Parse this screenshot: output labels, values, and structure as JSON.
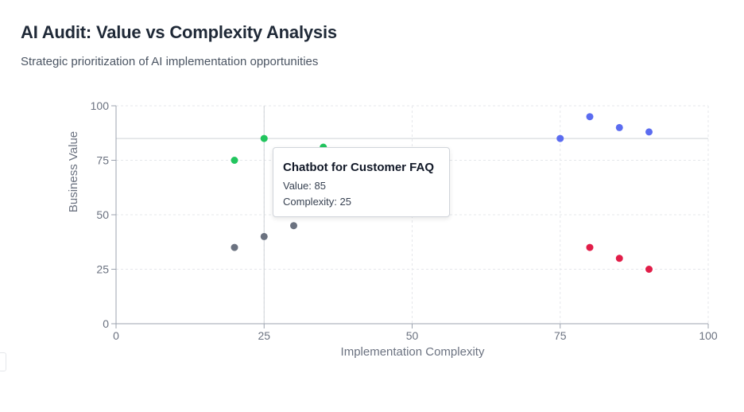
{
  "header": {
    "title": "AI Audit: Value vs Complexity Analysis",
    "subtitle": "Strategic prioritization of AI implementation opportunities"
  },
  "chart_data": {
    "type": "scatter",
    "title": "",
    "xlabel": "Implementation Complexity",
    "ylabel": "Business Value",
    "xlim": [
      0,
      100
    ],
    "ylim": [
      0,
      100
    ],
    "x_ticks": [
      0,
      25,
      50,
      75,
      100
    ],
    "y_ticks": [
      0,
      25,
      50,
      75,
      100
    ],
    "grid": true,
    "series": [
      {
        "color": "#22c55e",
        "points": [
          {
            "x": 20,
            "y": 75
          },
          {
            "x": 25,
            "y": 85
          },
          {
            "x": 35,
            "y": 81
          }
        ]
      },
      {
        "color": "#6b7280",
        "points": [
          {
            "x": 20,
            "y": 35
          },
          {
            "x": 25,
            "y": 40
          },
          {
            "x": 30,
            "y": 45
          }
        ]
      },
      {
        "color": "#5b6cf0",
        "points": [
          {
            "x": 75,
            "y": 85
          },
          {
            "x": 80,
            "y": 95
          },
          {
            "x": 85,
            "y": 90
          },
          {
            "x": 90,
            "y": 88
          }
        ]
      },
      {
        "color": "#e11d48",
        "points": [
          {
            "x": 80,
            "y": 35
          },
          {
            "x": 85,
            "y": 30
          },
          {
            "x": 90,
            "y": 25
          }
        ]
      }
    ],
    "crosshair": {
      "x": 25,
      "y": 85
    },
    "tooltip": {
      "title": "Chatbot for Customer FAQ",
      "value_line": "Value: 85",
      "complexity_line": "Complexity: 25"
    }
  }
}
